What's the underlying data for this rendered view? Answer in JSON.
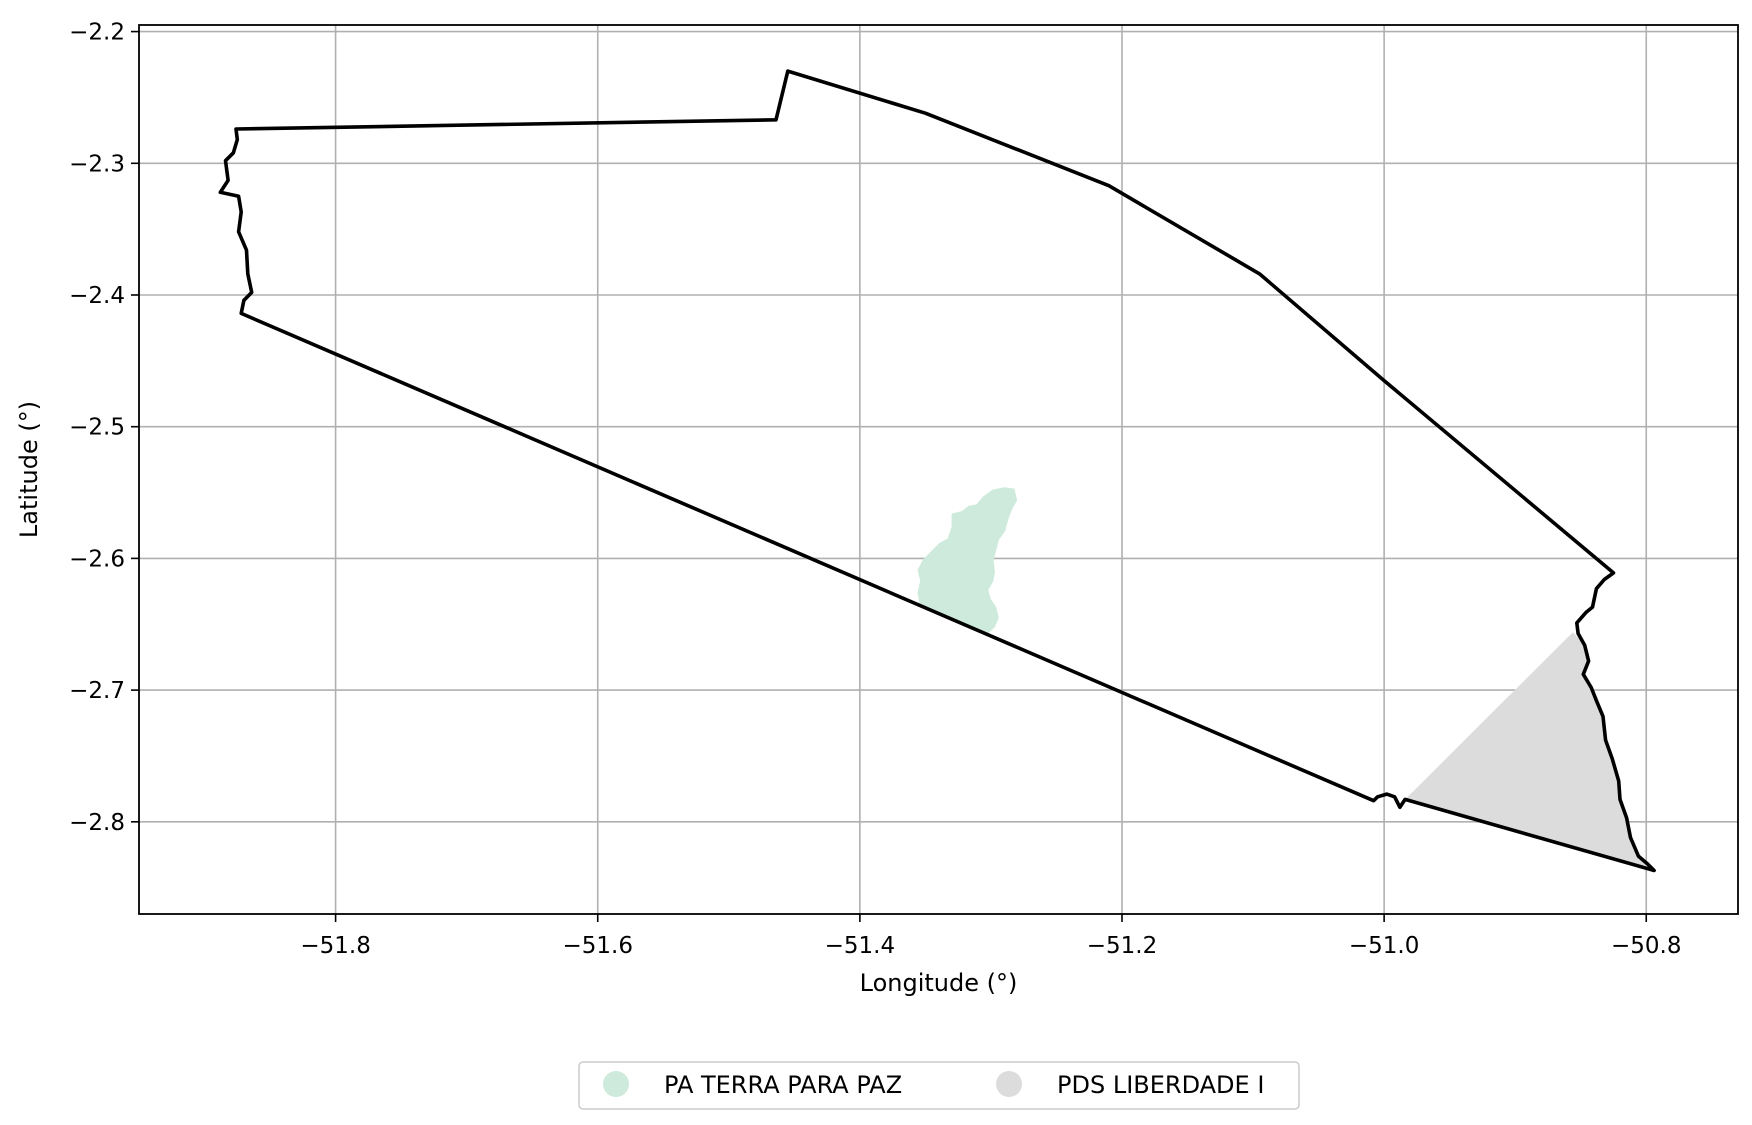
{
  "chart_data": {
    "type": "map",
    "xlabel": "Longitude (°)",
    "ylabel": "Latitude (°)",
    "xlim": [
      -51.95,
      -50.73
    ],
    "ylim": [
      -2.87,
      -2.195
    ],
    "grid": true,
    "legend_placement": "bottom-center",
    "x_ticks": [
      {
        "value": -51.8,
        "label": "−51.8"
      },
      {
        "value": -51.6,
        "label": "−51.6"
      },
      {
        "value": -51.4,
        "label": "−51.4"
      },
      {
        "value": -51.2,
        "label": "−51.2"
      },
      {
        "value": -51.0,
        "label": "−51.0"
      },
      {
        "value": -50.8,
        "label": "−50.8"
      }
    ],
    "y_ticks": [
      {
        "value": -2.2,
        "label": "−2.2"
      },
      {
        "value": -2.3,
        "label": "−2.3"
      },
      {
        "value": -2.4,
        "label": "−2.4"
      },
      {
        "value": -2.5,
        "label": "−2.5"
      },
      {
        "value": -2.6,
        "label": "−2.6"
      },
      {
        "value": -2.7,
        "label": "−2.7"
      },
      {
        "value": -2.8,
        "label": "−2.8"
      }
    ],
    "boundary": {
      "color": "#000000",
      "coords": [
        [
          -51.876,
          -2.274
        ],
        [
          -51.464,
          -2.267
        ],
        [
          -51.455,
          -2.23
        ],
        [
          -51.35,
          -2.262
        ],
        [
          -51.21,
          -2.317
        ],
        [
          -51.095,
          -2.384
        ],
        [
          -51.0,
          -2.465
        ],
        [
          -50.825,
          -2.611
        ],
        [
          -50.832,
          -2.616
        ],
        [
          -50.838,
          -2.623
        ],
        [
          -50.841,
          -2.637
        ],
        [
          -50.846,
          -2.641
        ],
        [
          -50.853,
          -2.649
        ],
        [
          -50.852,
          -2.657
        ],
        [
          -50.847,
          -2.666
        ],
        [
          -50.844,
          -2.678
        ],
        [
          -50.848,
          -2.688
        ],
        [
          -50.842,
          -2.698
        ],
        [
          -50.838,
          -2.708
        ],
        [
          -50.833,
          -2.72
        ],
        [
          -50.831,
          -2.738
        ],
        [
          -50.826,
          -2.752
        ],
        [
          -50.821,
          -2.769
        ],
        [
          -50.82,
          -2.783
        ],
        [
          -50.815,
          -2.797
        ],
        [
          -50.812,
          -2.812
        ],
        [
          -50.806,
          -2.826
        ],
        [
          -50.799,
          -2.832
        ],
        [
          -50.794,
          -2.837
        ],
        [
          -50.984,
          -2.783
        ],
        [
          -50.988,
          -2.789
        ],
        [
          -50.992,
          -2.781
        ],
        [
          -50.998,
          -2.779
        ],
        [
          -51.005,
          -2.781
        ],
        [
          -51.008,
          -2.784
        ],
        [
          -51.872,
          -2.414
        ],
        [
          -51.87,
          -2.404
        ],
        [
          -51.864,
          -2.398
        ],
        [
          -51.867,
          -2.384
        ],
        [
          -51.868,
          -2.366
        ],
        [
          -51.874,
          -2.352
        ],
        [
          -51.872,
          -2.337
        ],
        [
          -51.874,
          -2.325
        ],
        [
          -51.888,
          -2.322
        ],
        [
          -51.882,
          -2.313
        ],
        [
          -51.884,
          -2.298
        ],
        [
          -51.878,
          -2.292
        ],
        [
          -51.875,
          -2.282
        ],
        [
          -51.876,
          -2.274
        ]
      ]
    },
    "series": [
      {
        "name": "PA TERRA PARA PAZ",
        "color": "#cdeadc",
        "coords": [
          [
            -51.29,
            -2.546
          ],
          [
            -51.282,
            -2.547
          ],
          [
            -51.28,
            -2.556
          ],
          [
            -51.284,
            -2.563
          ],
          [
            -51.287,
            -2.571
          ],
          [
            -51.289,
            -2.579
          ],
          [
            -51.294,
            -2.586
          ],
          [
            -51.296,
            -2.594
          ],
          [
            -51.298,
            -2.601
          ],
          [
            -51.297,
            -2.61
          ],
          [
            -51.298,
            -2.617
          ],
          [
            -51.302,
            -2.624
          ],
          [
            -51.3,
            -2.631
          ],
          [
            -51.296,
            -2.637
          ],
          [
            -51.294,
            -2.645
          ],
          [
            -51.297,
            -2.652
          ],
          [
            -51.302,
            -2.657
          ],
          [
            -51.354,
            -2.637
          ],
          [
            -51.356,
            -2.626
          ],
          [
            -51.354,
            -2.617
          ],
          [
            -51.356,
            -2.609
          ],
          [
            -51.352,
            -2.601
          ],
          [
            -51.345,
            -2.594
          ],
          [
            -51.339,
            -2.588
          ],
          [
            -51.333,
            -2.585
          ],
          [
            -51.33,
            -2.576
          ],
          [
            -51.33,
            -2.566
          ],
          [
            -51.322,
            -2.564
          ],
          [
            -51.317,
            -2.56
          ],
          [
            -51.311,
            -2.559
          ],
          [
            -51.306,
            -2.553
          ],
          [
            -51.299,
            -2.548
          ],
          [
            -51.29,
            -2.546
          ]
        ]
      },
      {
        "name": "PDS LIBERDADE I",
        "color": "#dcdcdc",
        "coords": [
          [
            -50.856,
            -2.656
          ],
          [
            -50.847,
            -2.666
          ],
          [
            -50.844,
            -2.678
          ],
          [
            -50.848,
            -2.688
          ],
          [
            -50.842,
            -2.698
          ],
          [
            -50.838,
            -2.708
          ],
          [
            -50.833,
            -2.72
          ],
          [
            -50.831,
            -2.738
          ],
          [
            -50.826,
            -2.752
          ],
          [
            -50.821,
            -2.769
          ],
          [
            -50.82,
            -2.783
          ],
          [
            -50.815,
            -2.797
          ],
          [
            -50.812,
            -2.812
          ],
          [
            -50.806,
            -2.826
          ],
          [
            -50.799,
            -2.832
          ],
          [
            -50.794,
            -2.837
          ],
          [
            -50.984,
            -2.783
          ],
          [
            -50.856,
            -2.656
          ]
        ]
      }
    ]
  }
}
